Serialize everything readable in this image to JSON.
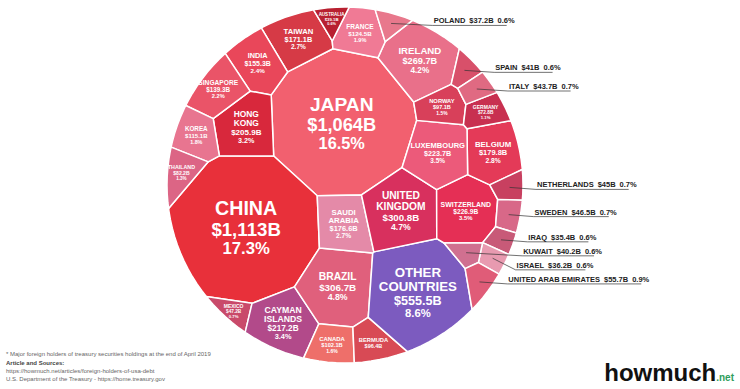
{
  "chart_data": {
    "type": "voronoi_treemap",
    "categories": [
      "JAPAN",
      "CHINA",
      "TAIWAN",
      "INDIA",
      "HONG KONG",
      "SINGAPORE",
      "KOREA",
      "THAILAND",
      "MEXICO",
      "CAYMAN ISLANDS",
      "BRAZIL",
      "CANADA",
      "BERMUDA",
      "OTHER COUNTRIES",
      "SAUDI ARABIA",
      "UNITED KINGDOM",
      "SWITZERLAND",
      "BELGIUM",
      "LUXEMBOURG",
      "IRELAND",
      "FRANCE",
      "NORWAY",
      "GERMANY",
      "AUSTRALIA",
      "POLAND",
      "SPAIN",
      "ITALY",
      "NETHERLANDS",
      "SWEDEN",
      "IRAQ",
      "ISRAEL",
      "KUWAIT",
      "UNITED ARAB EMIRATES"
    ],
    "values": [
      1064,
      1113,
      171.1,
      155.3,
      205.9,
      139.3,
      115.1,
      82.2,
      47.2,
      217.2,
      306.7,
      102.1,
      96.4,
      555.5,
      176.6,
      300.8,
      226.9,
      179.8,
      223.7,
      269.7,
      124.5,
      97.1,
      72.8,
      39.1,
      37.2,
      41,
      43.7,
      45,
      46.5,
      35.4,
      36.2,
      40.2,
      55.7
    ],
    "value_labels": [
      "$1,064B",
      "$1,113B",
      "$171.1B",
      "$155.3B",
      "$205.9B",
      "$139.3B",
      "$115.1B",
      "$82.2B",
      "$47.2B",
      "$217.2B",
      "$306.7B",
      "$102.1B",
      "$96.4B",
      "$555.5B",
      "$176.6B",
      "$300.8B",
      "$226.9B",
      "$179.8B",
      "$223.7B",
      "$269.7B",
      "$124.5B",
      "$97.1B",
      "$72.8B",
      "$39.1B",
      "$37.2B",
      "$41B",
      "$43.7B",
      "$45B",
      "$46.5B",
      "$35.4B",
      "$36.2B",
      "$40.2B",
      "$55.7B"
    ],
    "percents": [
      16.5,
      17.3,
      2.7,
      2.4,
      3.2,
      2.2,
      1.8,
      1.3,
      0.7,
      3.4,
      4.8,
      1.6,
      null,
      8.6,
      2.7,
      4.7,
      3.5,
      2.8,
      3.5,
      4.2,
      1.9,
      1.5,
      1.1,
      0.6,
      0.6,
      0.6,
      0.7,
      0.7,
      0.7,
      0.6,
      0.6,
      0.6,
      0.9
    ],
    "percent_labels": [
      "16.5%",
      "17.3%",
      "2.7%",
      "2.4%",
      "3.2%",
      "2.2%",
      "1.8%",
      "1.3%",
      "0.7%",
      "3.4%",
      "4.8%",
      "1.6%",
      null,
      "8.6%",
      "2.7%",
      "4.7%",
      "3.5%",
      "2.8%",
      "3.5%",
      "4.2%",
      "1.9%",
      "1.5%",
      "1.1%",
      "0.6%",
      "0.6%",
      "0.6%",
      "0.7%",
      "0.7%",
      "0.7%",
      "0.6%",
      "0.6%",
      "0.6%",
      "0.9%"
    ],
    "colors": [
      "#f2606f",
      "#e8303a",
      "#d63a46",
      "#e9475a",
      "#d8283c",
      "#ea5468",
      "#e87590",
      "#dc6585",
      "#c94a6a",
      "#b24a8a",
      "#e0607c",
      "#ee6f6a",
      "#d84a55",
      "#7c5bbf",
      "#e48aa8",
      "#d8305e",
      "#e52f55",
      "#e43a58",
      "#ec5a7a",
      "#e9708a",
      "#f07a95",
      "#d8405a",
      "#c83050",
      "#b82030",
      "#e8788c",
      "#d8506a",
      "#e06a82",
      "#c84060",
      "#d86888",
      "#c85a78",
      "#e89ab0",
      "#d07090",
      "#e05c78"
    ],
    "data_labels": true
  },
  "footnote": "* Major foreign holders of treasury securities holdings at the end of April 2019",
  "sources_title": "Article and Sources:",
  "sources": [
    "https://howmuch.net/articles/foreign-holders-of-usa-debt",
    "U.S. Department of the Treasury - https://home.treasury.gov"
  ],
  "logo": "howmuch",
  "logo_suffix": ".net"
}
